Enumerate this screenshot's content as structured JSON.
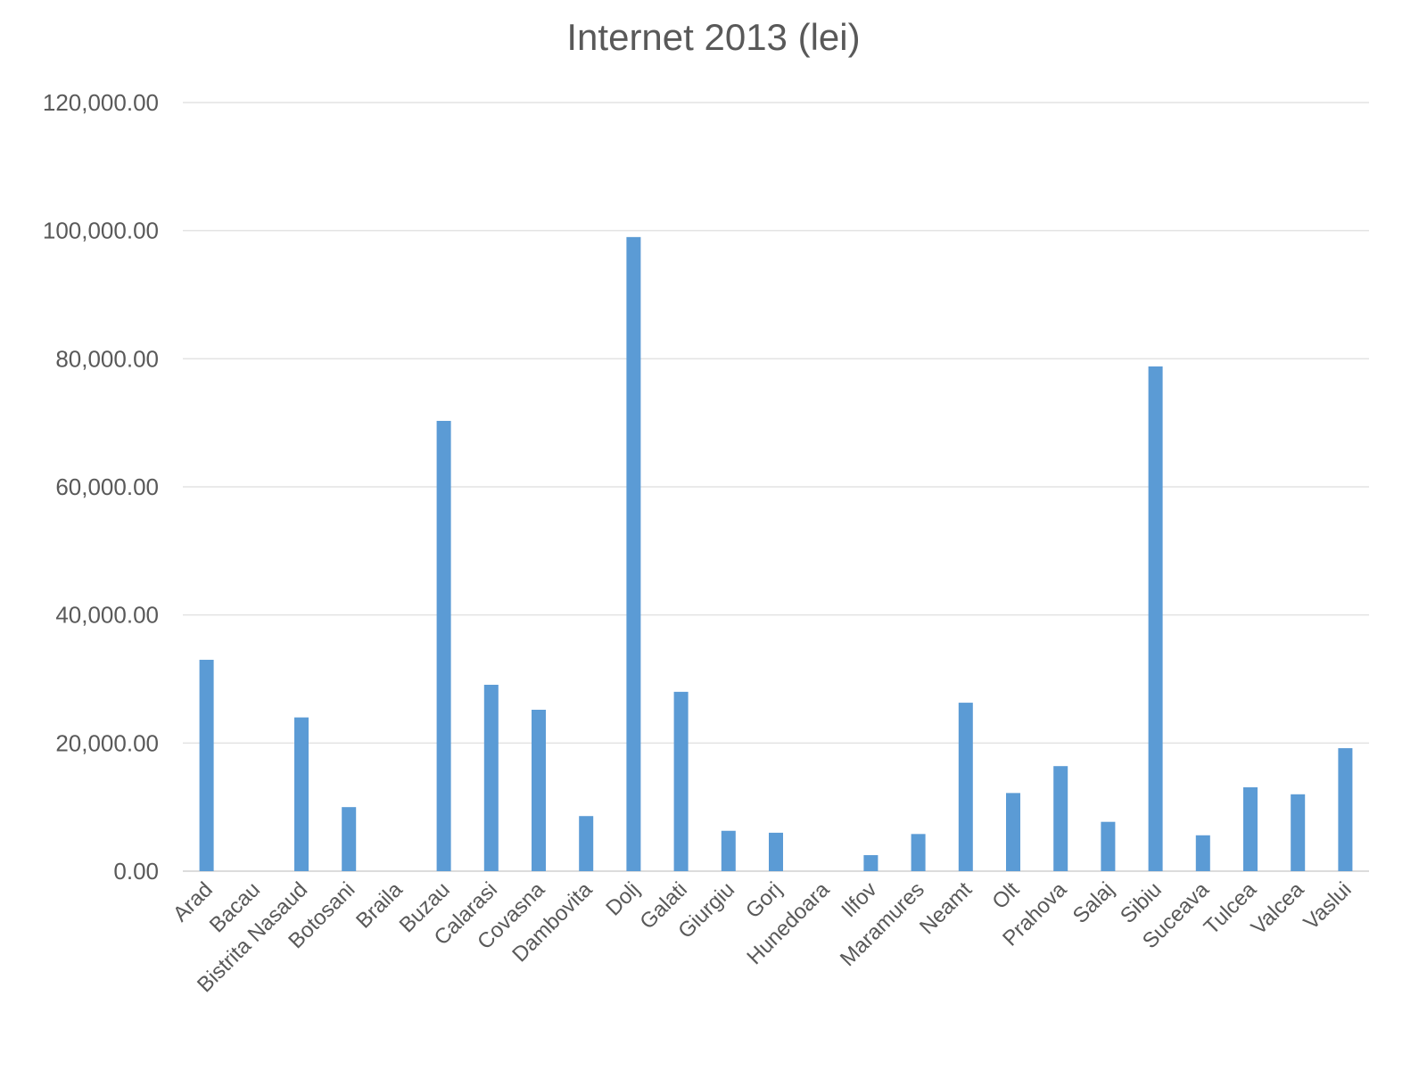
{
  "chart_data": {
    "type": "bar",
    "title": "Internet 2013 (lei)",
    "xlabel": "",
    "ylabel": "",
    "ylim": [
      0,
      120000
    ],
    "yticks": [
      "0.00",
      "20,000.00",
      "40,000.00",
      "60,000.00",
      "80,000.00",
      "100,000.00",
      "120,000.00"
    ],
    "grid": true,
    "legend": "none",
    "bar_color": "#5b9bd5",
    "categories": [
      "Arad",
      "Bacau",
      "Bistrita Nasaud",
      "Botosani",
      "Braila",
      "Buzau",
      "Calarasi",
      "Covasna",
      "Dambovita",
      "Dolj",
      "Galati",
      "Giurgiu",
      "Gorj",
      "Hunedoara",
      "Ilfov",
      "Maramures",
      "Neamt",
      "Olt",
      "Prahova",
      "Salaj",
      "Sibiu",
      "Suceava",
      "Tulcea",
      "Valcea",
      "Vaslui"
    ],
    "values": [
      33000,
      0,
      24000,
      10000,
      0,
      70300,
      29100,
      25200,
      8600,
      99000,
      28000,
      6300,
      6000,
      0,
      2500,
      5800,
      26300,
      12200,
      16400,
      7700,
      78800,
      5600,
      13100,
      12000,
      19200
    ]
  }
}
